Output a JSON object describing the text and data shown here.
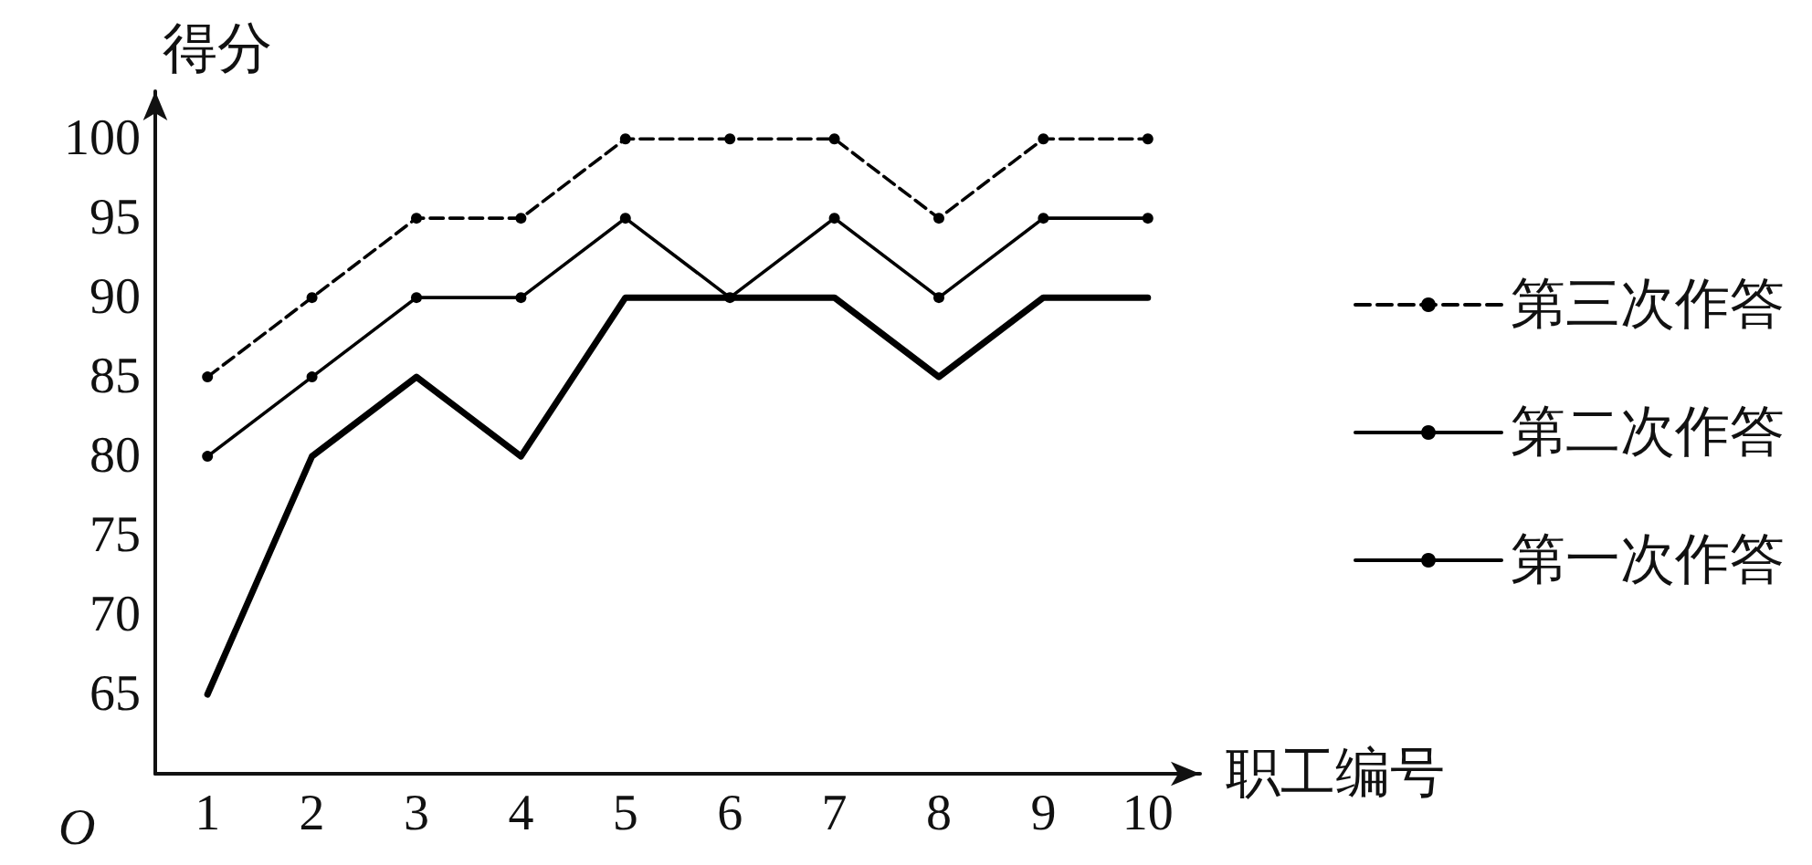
{
  "chart_data": {
    "type": "line",
    "xlabel": "职工编号",
    "ylabel": "得分",
    "categories": [
      "1",
      "2",
      "3",
      "4",
      "5",
      "6",
      "7",
      "8",
      "9",
      "10"
    ],
    "series": [
      {
        "name": "第三次作答",
        "color": "#000000",
        "line_style": "dashed",
        "marker": "circle",
        "values": [
          85,
          90,
          95,
          95,
          100,
          100,
          100,
          95,
          100,
          100
        ]
      },
      {
        "name": "第二次作答",
        "color": "#000000",
        "line_style": "solid",
        "marker": "circle",
        "values": [
          80,
          85,
          90,
          90,
          95,
          90,
          95,
          90,
          95,
          95
        ]
      },
      {
        "name": "第一次作答",
        "color": "#000000",
        "line_style": "solid",
        "marker": "none",
        "values": [
          65,
          80,
          85,
          80,
          90,
          90,
          90,
          85,
          90,
          90
        ]
      }
    ],
    "ylim": [
      60,
      103
    ],
    "yticks": [
      65,
      70,
      75,
      80,
      85,
      90,
      95,
      100
    ],
    "annotations": [
      "O"
    ],
    "grid": false,
    "legend": "right"
  }
}
